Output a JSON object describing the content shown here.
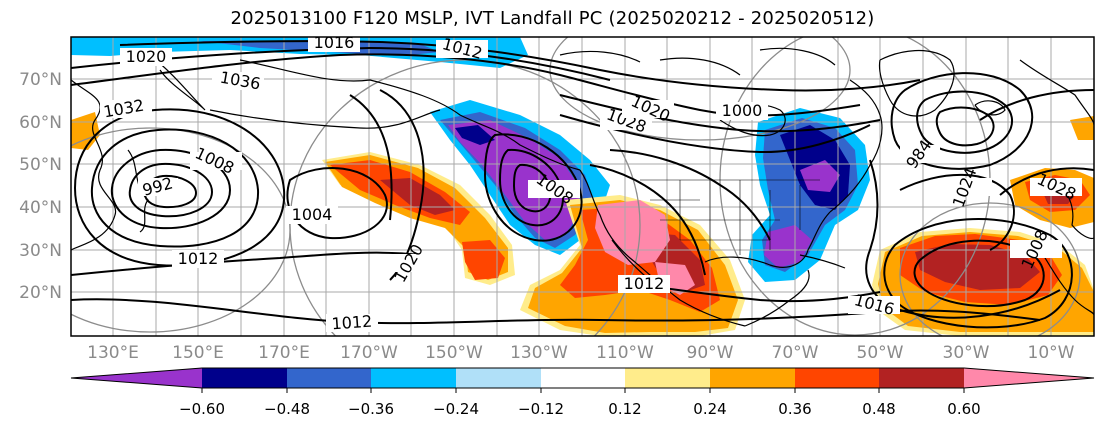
{
  "title": "2025013100 F120 MSLP, IVT Landfall PC (2025020212 - 2025020512)",
  "lat_labels": [
    "70°N",
    "60°N",
    "50°N",
    "40°N",
    "30°N",
    "20°N"
  ],
  "lon_labels": [
    "130°E",
    "150°E",
    "170°E",
    "170°W",
    "150°W",
    "130°W",
    "110°W",
    "90°W",
    "70°W",
    "50°W",
    "30°W",
    "10°W"
  ],
  "colorbar": {
    "colors": [
      "#9933cc",
      "#00008b",
      "#3366cc",
      "#00bfff",
      "#b0e0f8",
      "#ffffff",
      "#ffec8b",
      "#ffa500",
      "#ff4500",
      "#b22222",
      "#ff88aa"
    ],
    "tick_labels": [
      "−0.60",
      "−0.48",
      "−0.36",
      "−0.24",
      "−0.12",
      "0.12",
      "0.24",
      "0.36",
      "0.48",
      "0.60"
    ]
  },
  "isobar_labels": {
    "a1016": "1016",
    "a1012top": "1012",
    "a1020": "1020",
    "a1036": "1036",
    "a1032": "1032",
    "a1008": "1008",
    "a1004": "1004",
    "a1012w": "1012",
    "a1020c": "1020",
    "a1012s": "1012",
    "a1008c": "1008",
    "a1000": "1000",
    "a1016se": "1016",
    "a1024": "1024",
    "a984": "984",
    "a1028": "1028",
    "a1008e": "1008",
    "a992": "992",
    "a1028ne": "1028",
    "a1012ne": "1012",
    "a1020n": "1020"
  }
}
